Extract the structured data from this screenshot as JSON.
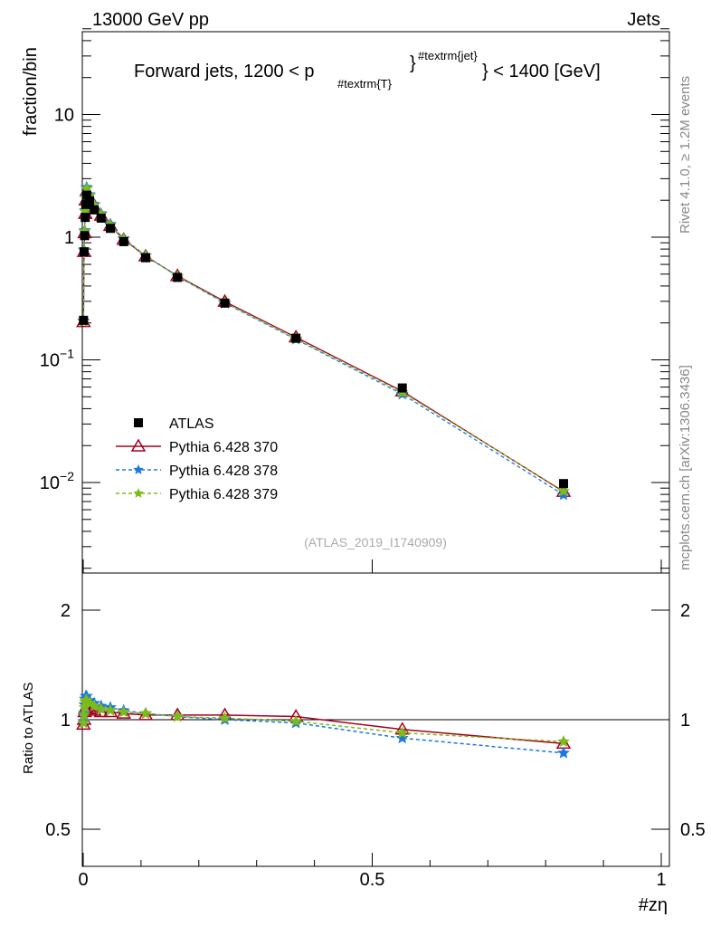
{
  "header": {
    "left": "13000 GeV pp",
    "right": "Jets"
  },
  "side": {
    "rivet": "Rivet 4.1.0, ≥ 1.2M events",
    "mcplots": "mcplots.cern.ch [arXiv:1306.3436]"
  },
  "chart_data": {
    "type": "line",
    "title_main": "Forward jets, 1200 < p",
    "title_sub": "#textrm{T}",
    "title_sup": "#textrm{jet}",
    "title_end": "} < 1400 [GeV]",
    "title_brace": "}",
    "ylabel": "fraction/bin",
    "xlabel": "#zη",
    "ratio_ylabel": "Ratio to ATLAS",
    "watermark": "(ATLAS_2019_I1740909)",
    "xlim": [
      0,
      1
    ],
    "ylim": [
      0.002,
      50
    ],
    "ratio_ylim": [
      0.4,
      2.4
    ],
    "xticks": [
      {
        "v": 0,
        "l": "0"
      },
      {
        "v": 0.5,
        "l": "0.5"
      },
      {
        "v": 1,
        "l": "1"
      }
    ],
    "yticks": [
      {
        "v": 10,
        "l": "10"
      },
      {
        "v": 1,
        "l": "1"
      },
      {
        "v": 0.1,
        "l": "10^-1"
      },
      {
        "v": 0.01,
        "l": "10^-2"
      }
    ],
    "ratio_ticks": [
      {
        "v": 2,
        "l": "2"
      },
      {
        "v": 1,
        "l": "1"
      },
      {
        "v": 0.5,
        "l": "0.5"
      }
    ],
    "x": [
      0.0005,
      0.0015,
      0.0025,
      0.0035,
      0.0045,
      0.006,
      0.011,
      0.019,
      0.031,
      0.047,
      0.07,
      0.108,
      0.163,
      0.245,
      0.368,
      0.552,
      0.831
    ],
    "data": {
      "name": "ATLAS",
      "values": [
        0.21,
        0.76,
        1.03,
        1.45,
        1.85,
        2.2,
        1.97,
        1.67,
        1.43,
        1.18,
        0.92,
        0.68,
        0.47,
        0.29,
        0.15,
        0.059,
        0.0098
      ]
    },
    "series": [
      {
        "name": "Pythia 6.428 370",
        "color": "#a50021",
        "marker": "triangle",
        "dash": "",
        "ratio": [
          0.97,
          1.0,
          1.05,
          1.07,
          1.08,
          1.08,
          1.07,
          1.06,
          1.05,
          1.05,
          1.04,
          1.03,
          1.03,
          1.03,
          1.02,
          0.94,
          0.86
        ]
      },
      {
        "name": "Pythia 6.428 378",
        "color": "#1b78e0",
        "marker": "star",
        "dash": "4,3",
        "ratio": [
          0.99,
          1.04,
          1.1,
          1.14,
          1.16,
          1.16,
          1.13,
          1.11,
          1.09,
          1.08,
          1.06,
          1.04,
          1.02,
          1.0,
          0.98,
          0.89,
          0.81
        ]
      },
      {
        "name": "Pythia 6.428 379",
        "color": "#7cbb1b",
        "marker": "star",
        "dash": "4,3",
        "ratio": [
          0.98,
          1.03,
          1.08,
          1.12,
          1.13,
          1.13,
          1.11,
          1.09,
          1.07,
          1.06,
          1.05,
          1.04,
          1.02,
          1.01,
          0.99,
          0.92,
          0.87
        ]
      }
    ]
  }
}
